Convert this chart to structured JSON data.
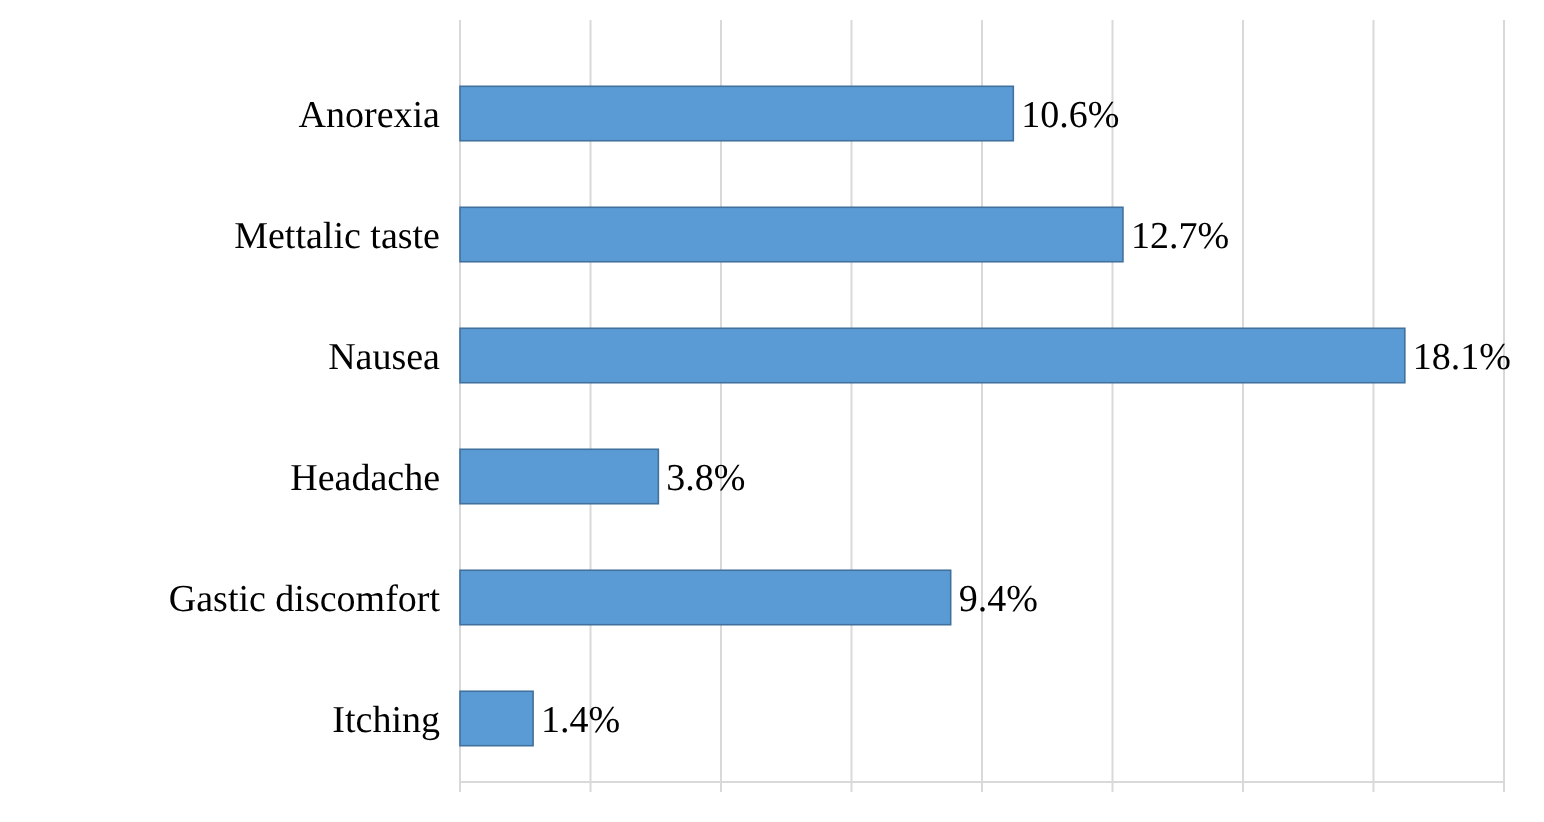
{
  "chart_data": {
    "type": "bar",
    "orientation": "horizontal",
    "categories": [
      "Anorexia",
      "Mettalic taste",
      "Nausea",
      "Headache",
      "Gastic discomfort",
      "Itching"
    ],
    "values": [
      10.6,
      12.7,
      18.1,
      3.8,
      9.4,
      1.4
    ],
    "value_labels": [
      "10.6%",
      "12.7%",
      "18.1%",
      "3.8%",
      "9.4%",
      "1.4%"
    ],
    "color": "#5b9bd5",
    "xlim": [
      0,
      20
    ],
    "xticks": [
      {
        "value": 0,
        "label": null
      },
      {
        "value": 2.5,
        "label": null
      },
      {
        "value": 5,
        "label": null
      },
      {
        "value": 7.5,
        "label": null
      },
      {
        "value": 10,
        "label": null
      },
      {
        "value": 12.5,
        "label": null
      },
      {
        "value": 15,
        "label": null
      },
      {
        "value": 17.5,
        "label": null
      },
      {
        "value": 20,
        "label": null
      }
    ],
    "grid": "x",
    "tick_labels": "y"
  }
}
